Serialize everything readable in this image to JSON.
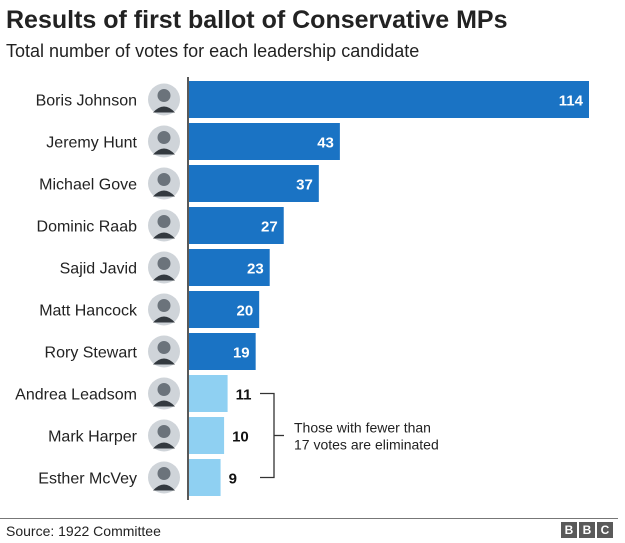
{
  "header": {
    "title": "Results of first ballot of Conservative MPs",
    "subtitle": "Total number of votes for each leadership candidate"
  },
  "chart_data": {
    "type": "bar",
    "orientation": "horizontal",
    "title": "Results of first ballot of Conservative MPs",
    "subtitle": "Total number of votes for each leadership candidate",
    "categories": [
      "Boris Johnson",
      "Jeremy Hunt",
      "Michael Gove",
      "Dominic Raab",
      "Sajid Javid",
      "Matt Hancock",
      "Rory Stewart",
      "Andrea Leadsom",
      "Mark Harper",
      "Esther McVey"
    ],
    "values": [
      114,
      43,
      37,
      27,
      23,
      20,
      19,
      11,
      10,
      9
    ],
    "eliminated": [
      false,
      false,
      false,
      false,
      false,
      false,
      false,
      true,
      true,
      true
    ],
    "colors": {
      "advanced": "#1a73c4",
      "eliminated": "#8fd0f2",
      "label_inside": "#ffffff",
      "label_outside": "#111111",
      "axis": "#222222"
    },
    "annotation": [
      "Those with fewer than",
      "17 votes are eliminated"
    ],
    "xlim": [
      0,
      114
    ],
    "grid": false,
    "legend": "none"
  },
  "icons": {
    "portrait": "person-portrait-icon"
  },
  "footer": {
    "source": "Source: 1922 Committee",
    "logo": [
      "B",
      "B",
      "C"
    ]
  }
}
